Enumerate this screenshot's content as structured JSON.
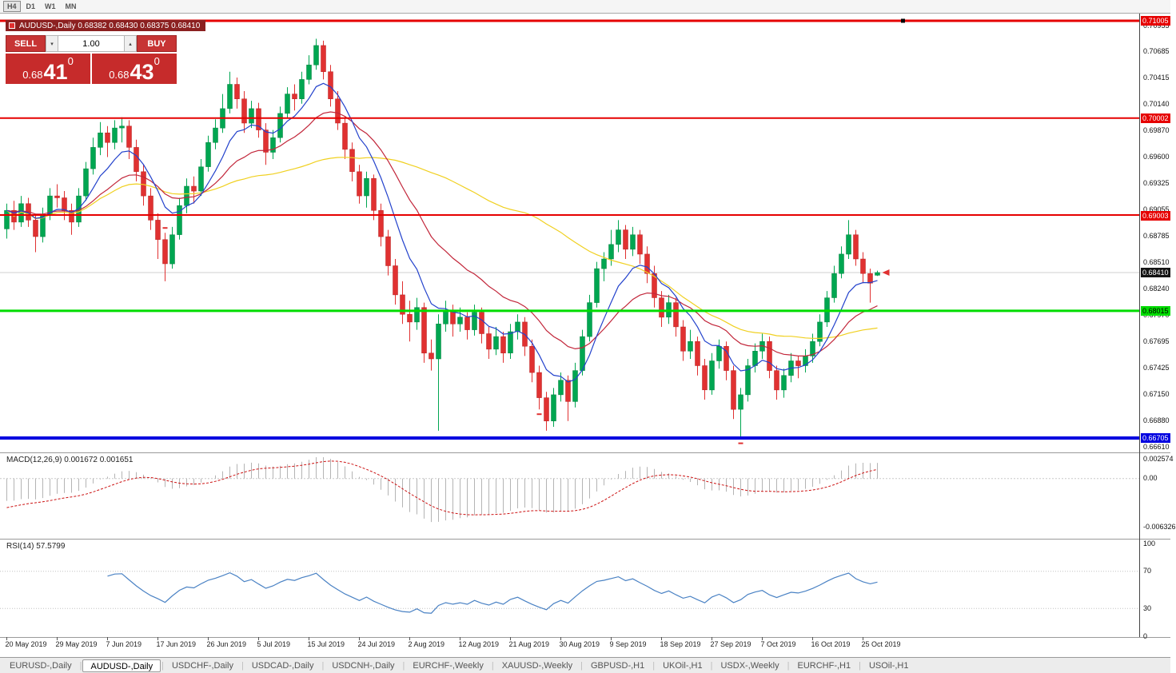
{
  "colors": {
    "bull": "#00a651",
    "bullEdge": "#00823e",
    "bear": "#e03131",
    "bearEdge": "#b82222",
    "macd_hist": "#b4b4b4",
    "macd_signal": "#cc1111",
    "rsi_line": "#4a82c4",
    "accent_red": "#e60000",
    "accent_green": "#00dc00",
    "accent_blue": "#0000e0"
  },
  "toolbar": {
    "timeframes": [
      "H4",
      "D1",
      "W1",
      "MN"
    ],
    "active": "H4"
  },
  "chart_header": {
    "symbol_line": "AUDUSD-,Daily  0.68382 0.68430 0.68375 0.68410"
  },
  "one_click": {
    "sell_label": "SELL",
    "buy_label": "BUY",
    "lots": "1.00",
    "spin_down_icon": "▾",
    "spin_up_icon": "▴",
    "bid_prefix": "0.68",
    "bid_big": "41",
    "bid_sup": "0",
    "ask_prefix": "0.68",
    "ask_big": "43",
    "ask_sup": "0"
  },
  "indicators": {
    "macd_label": "MACD(12,26,9) 0.001672 0.001651",
    "rsi_label": "RSI(14) 57.5799"
  },
  "price_axis": {
    "ticks": [
      "0.70955",
      "0.70685",
      "0.70415",
      "0.70140",
      "0.69870",
      "0.69600",
      "0.69325",
      "0.69055",
      "0.68785",
      "0.68510",
      "0.68240",
      "0.67970",
      "0.67695",
      "0.67425",
      "0.67150",
      "0.66880",
      "0.66610"
    ]
  },
  "tabs": {
    "items": [
      "EURUSD-,Daily",
      "AUDUSD-,Daily",
      "USDCHF-,Daily",
      "USDCAD-,Daily",
      "USDCNH-,Daily",
      "EURCHF-,Weekly",
      "XAUUSD-,Weekly",
      "GBPUSD-,H1",
      "UKOil-,H1",
      "USDX-,Weekly",
      "EURCHF-,H1",
      "USOil-,H1"
    ],
    "active_index": 1
  },
  "chart_data": {
    "type": "candlestick",
    "symbol": "AUDUSD-",
    "timeframe": "Daily",
    "ohlc_display": {
      "open": "0.68382",
      "high": "0.68430",
      "low": "0.68375",
      "close": "0.68410"
    },
    "current_price": {
      "price": 0.6841,
      "label": "0.68410"
    },
    "levels": [
      {
        "price": 0.71005,
        "label": "0.71005",
        "color": "#e60000",
        "thickness": 3,
        "text_color": "#ffffff"
      },
      {
        "price": 0.70002,
        "label": "0.70002",
        "color": "#e60000",
        "thickness": 2,
        "text_color": "#ffffff"
      },
      {
        "price": 0.69003,
        "label": "0.69003",
        "color": "#e60000",
        "thickness": 2,
        "text_color": "#ffffff"
      },
      {
        "price": 0.68015,
        "label": "0.68015",
        "color": "#00dc00",
        "thickness": 3,
        "text_color": "#000000"
      },
      {
        "price": 0.66705,
        "label": "0.66705",
        "color": "#0000e0",
        "thickness": 4,
        "text_color": "#ffffff"
      }
    ],
    "moving_averages": [
      {
        "period": 8,
        "type": "ema",
        "color": "#2342cc"
      },
      {
        "period": 20,
        "type": "ema",
        "color": "#c2263a"
      },
      {
        "period": 50,
        "type": "sma",
        "color": "#f0d020"
      }
    ],
    "macd": {
      "params": [
        12,
        26,
        9
      ],
      "value": 0.001672,
      "signal": 0.001651,
      "axis": [
        {
          "label": "0.002574",
          "v": 0.002574
        },
        {
          "label": "0.00",
          "v": 0
        },
        {
          "label": "-0.006326",
          "v": -0.006326
        }
      ]
    },
    "rsi": {
      "period": 14,
      "value": 57.5799,
      "axis": [
        {
          "label": "100",
          "v": 100
        },
        {
          "label": "70",
          "v": 70
        },
        {
          "label": "30",
          "v": 30
        },
        {
          "label": "0",
          "v": 0
        }
      ]
    },
    "markers": [
      {
        "index": 22,
        "position": "above"
      },
      {
        "index": 74,
        "position": "below"
      },
      {
        "index": 102,
        "position": "below"
      }
    ],
    "x_axis": {
      "labels": [
        {
          "text": "20 May 2019",
          "i": 0
        },
        {
          "text": "29 May 2019",
          "i": 7
        },
        {
          "text": "7 Jun 2019",
          "i": 14
        },
        {
          "text": "17 Jun 2019",
          "i": 21
        },
        {
          "text": "26 Jun 2019",
          "i": 28
        },
        {
          "text": "5 Jul 2019",
          "i": 35
        },
        {
          "text": "15 Jul 2019",
          "i": 42
        },
        {
          "text": "24 Jul 2019",
          "i": 49
        },
        {
          "text": "2 Aug 2019",
          "i": 56
        },
        {
          "text": "12 Aug 2019",
          "i": 63
        },
        {
          "text": "21 Aug 2019",
          "i": 70
        },
        {
          "text": "30 Aug 2019",
          "i": 77
        },
        {
          "text": "9 Sep 2019",
          "i": 84
        },
        {
          "text": "18 Sep 2019",
          "i": 91
        },
        {
          "text": "27 Sep 2019",
          "i": 98
        },
        {
          "text": "7 Oct 2019",
          "i": 105
        },
        {
          "text": "16 Oct 2019",
          "i": 112
        },
        {
          "text": "25 Oct 2019",
          "i": 119
        }
      ]
    },
    "candles": [
      [
        0.6886,
        0.6912,
        0.6876,
        0.6905
      ],
      [
        0.6905,
        0.6915,
        0.6885,
        0.6893
      ],
      [
        0.6893,
        0.692,
        0.6888,
        0.6912
      ],
      [
        0.6912,
        0.6918,
        0.6888,
        0.6895
      ],
      [
        0.6895,
        0.69,
        0.6862,
        0.6878
      ],
      [
        0.6878,
        0.6908,
        0.6872,
        0.6901
      ],
      [
        0.6901,
        0.6928,
        0.6895,
        0.692
      ],
      [
        0.692,
        0.6932,
        0.6908,
        0.6918
      ],
      [
        0.6918,
        0.6925,
        0.6895,
        0.6905
      ],
      [
        0.6905,
        0.6912,
        0.688,
        0.6893
      ],
      [
        0.6893,
        0.6928,
        0.6888,
        0.692
      ],
      [
        0.692,
        0.6955,
        0.6915,
        0.6948
      ],
      [
        0.6948,
        0.698,
        0.6942,
        0.697
      ],
      [
        0.697,
        0.6996,
        0.6962,
        0.6985
      ],
      [
        0.6985,
        0.6992,
        0.696,
        0.6975
      ],
      [
        0.6975,
        0.6998,
        0.6968,
        0.699
      ],
      [
        0.699,
        0.7001,
        0.6975,
        0.6992
      ],
      [
        0.6992,
        0.6998,
        0.6958,
        0.697
      ],
      [
        0.697,
        0.6978,
        0.6935,
        0.6945
      ],
      [
        0.6945,
        0.6952,
        0.691,
        0.692
      ],
      [
        0.692,
        0.6928,
        0.6885,
        0.6895
      ],
      [
        0.6895,
        0.6902,
        0.6855,
        0.6875
      ],
      [
        0.6875,
        0.6882,
        0.6832,
        0.685
      ],
      [
        0.685,
        0.6888,
        0.6845,
        0.688
      ],
      [
        0.688,
        0.6918,
        0.6875,
        0.691
      ],
      [
        0.691,
        0.6938,
        0.6902,
        0.693
      ],
      [
        0.693,
        0.694,
        0.6912,
        0.6925
      ],
      [
        0.6925,
        0.6958,
        0.692,
        0.695
      ],
      [
        0.695,
        0.6982,
        0.6945,
        0.6975
      ],
      [
        0.6975,
        0.6999,
        0.6968,
        0.699
      ],
      [
        0.699,
        0.7025,
        0.6985,
        0.701
      ],
      [
        0.701,
        0.7048,
        0.7005,
        0.7035
      ],
      [
        0.7035,
        0.7042,
        0.701,
        0.702
      ],
      [
        0.702,
        0.7028,
        0.6985,
        0.6995
      ],
      [
        0.6995,
        0.7018,
        0.699,
        0.701
      ],
      [
        0.701,
        0.7016,
        0.698,
        0.6988
      ],
      [
        0.6988,
        0.6995,
        0.6952,
        0.6965
      ],
      [
        0.6965,
        0.6988,
        0.6958,
        0.698
      ],
      [
        0.698,
        0.7012,
        0.6975,
        0.7005
      ],
      [
        0.7005,
        0.7032,
        0.7,
        0.7025
      ],
      [
        0.7025,
        0.7035,
        0.7008,
        0.702
      ],
      [
        0.702,
        0.7048,
        0.7015,
        0.704
      ],
      [
        0.704,
        0.7065,
        0.7035,
        0.7055
      ],
      [
        0.7055,
        0.7082,
        0.705,
        0.7075
      ],
      [
        0.7075,
        0.708,
        0.704,
        0.7048
      ],
      [
        0.7048,
        0.7055,
        0.7012,
        0.702
      ],
      [
        0.702,
        0.7028,
        0.6988,
        0.6995
      ],
      [
        0.6995,
        0.7002,
        0.6958,
        0.6968
      ],
      [
        0.6968,
        0.6975,
        0.6935,
        0.6945
      ],
      [
        0.6945,
        0.6952,
        0.6912,
        0.692
      ],
      [
        0.692,
        0.6945,
        0.6908,
        0.6938
      ],
      [
        0.6938,
        0.6942,
        0.6895,
        0.6905
      ],
      [
        0.6905,
        0.6912,
        0.6868,
        0.6878
      ],
      [
        0.6878,
        0.6885,
        0.6838,
        0.6848
      ],
      [
        0.6848,
        0.6855,
        0.6808,
        0.6818
      ],
      [
        0.6818,
        0.6832,
        0.6788,
        0.6798
      ],
      [
        0.6798,
        0.6812,
        0.677,
        0.679
      ],
      [
        0.679,
        0.6815,
        0.6782,
        0.6805
      ],
      [
        0.6805,
        0.681,
        0.6748,
        0.6758
      ],
      [
        0.6758,
        0.6772,
        0.674,
        0.6752
      ],
      [
        0.6752,
        0.6798,
        0.6678,
        0.6788
      ],
      [
        0.6788,
        0.6812,
        0.678,
        0.6802
      ],
      [
        0.6802,
        0.6808,
        0.6775,
        0.6788
      ],
      [
        0.6788,
        0.6805,
        0.678,
        0.6795
      ],
      [
        0.6795,
        0.68,
        0.6772,
        0.6782
      ],
      [
        0.6782,
        0.6808,
        0.6776,
        0.68
      ],
      [
        0.68,
        0.6805,
        0.6768,
        0.6778
      ],
      [
        0.6778,
        0.6785,
        0.6752,
        0.6762
      ],
      [
        0.6762,
        0.6785,
        0.6756,
        0.6775
      ],
      [
        0.6775,
        0.678,
        0.6748,
        0.6758
      ],
      [
        0.6758,
        0.6788,
        0.6752,
        0.678
      ],
      [
        0.678,
        0.6798,
        0.6772,
        0.679
      ],
      [
        0.679,
        0.6795,
        0.6755,
        0.6765
      ],
      [
        0.6765,
        0.6772,
        0.6728,
        0.6738
      ],
      [
        0.6738,
        0.6745,
        0.67,
        0.6712
      ],
      [
        0.6712,
        0.6718,
        0.6678,
        0.6688
      ],
      [
        0.6688,
        0.6722,
        0.6682,
        0.6715
      ],
      [
        0.6715,
        0.6738,
        0.6708,
        0.673
      ],
      [
        0.673,
        0.6735,
        0.6688,
        0.6708
      ],
      [
        0.6708,
        0.6748,
        0.6702,
        0.674
      ],
      [
        0.674,
        0.6782,
        0.6735,
        0.6775
      ],
      [
        0.6775,
        0.6818,
        0.677,
        0.681
      ],
      [
        0.681,
        0.6852,
        0.6805,
        0.6845
      ],
      [
        0.6845,
        0.6862,
        0.6832,
        0.6855
      ],
      [
        0.6855,
        0.6885,
        0.6848,
        0.687
      ],
      [
        0.687,
        0.6895,
        0.6862,
        0.6885
      ],
      [
        0.6885,
        0.689,
        0.6855,
        0.6865
      ],
      [
        0.6865,
        0.6888,
        0.6858,
        0.688
      ],
      [
        0.688,
        0.6885,
        0.685,
        0.686
      ],
      [
        0.686,
        0.6868,
        0.683,
        0.684
      ],
      [
        0.684,
        0.6848,
        0.6805,
        0.6815
      ],
      [
        0.6815,
        0.6822,
        0.6785,
        0.6795
      ],
      [
        0.6795,
        0.6818,
        0.6788,
        0.681
      ],
      [
        0.681,
        0.6815,
        0.6775,
        0.6785
      ],
      [
        0.6785,
        0.6792,
        0.675,
        0.676
      ],
      [
        0.676,
        0.6782,
        0.6752,
        0.677
      ],
      [
        0.677,
        0.6775,
        0.6735,
        0.6745
      ],
      [
        0.6745,
        0.6752,
        0.671,
        0.672
      ],
      [
        0.672,
        0.6758,
        0.6715,
        0.675
      ],
      [
        0.675,
        0.6772,
        0.6742,
        0.6765
      ],
      [
        0.6765,
        0.677,
        0.673,
        0.674
      ],
      [
        0.674,
        0.6745,
        0.669,
        0.67
      ],
      [
        0.67,
        0.6722,
        0.667,
        0.6715
      ],
      [
        0.6715,
        0.6752,
        0.6708,
        0.6745
      ],
      [
        0.6745,
        0.6768,
        0.6738,
        0.676
      ],
      [
        0.676,
        0.6778,
        0.6752,
        0.677
      ],
      [
        0.677,
        0.6775,
        0.6732,
        0.674
      ],
      [
        0.674,
        0.6745,
        0.671,
        0.672
      ],
      [
        0.672,
        0.6742,
        0.6712,
        0.6735
      ],
      [
        0.6735,
        0.6758,
        0.6728,
        0.675
      ],
      [
        0.675,
        0.6755,
        0.6732,
        0.6745
      ],
      [
        0.6745,
        0.6762,
        0.6738,
        0.6755
      ],
      [
        0.6755,
        0.6778,
        0.6748,
        0.677
      ],
      [
        0.677,
        0.6798,
        0.6765,
        0.679
      ],
      [
        0.679,
        0.6822,
        0.6785,
        0.6815
      ],
      [
        0.6815,
        0.6848,
        0.681,
        0.684
      ],
      [
        0.684,
        0.6868,
        0.6835,
        0.686
      ],
      [
        0.686,
        0.6895,
        0.6855,
        0.688
      ],
      [
        0.688,
        0.6885,
        0.6848,
        0.6855
      ],
      [
        0.6855,
        0.6862,
        0.683,
        0.684
      ],
      [
        0.684,
        0.6845,
        0.681,
        0.683
      ],
      [
        0.68382,
        0.6843,
        0.68375,
        0.6841
      ]
    ]
  }
}
